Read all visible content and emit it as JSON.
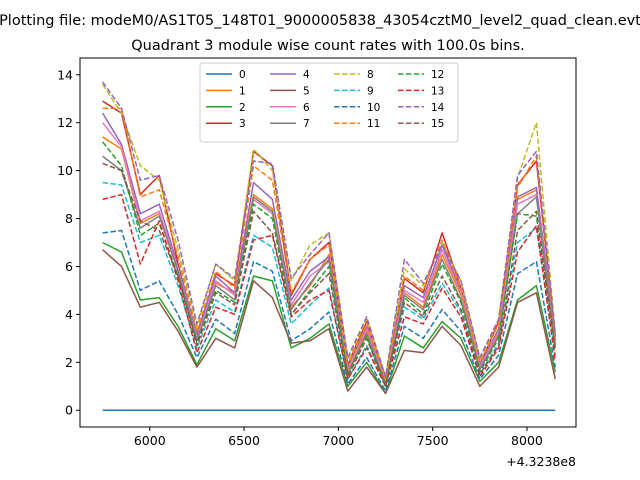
{
  "chart_data": {
    "type": "line",
    "suptitle": "Plotting file: modeM0/AS1T05_148T01_9000005838_43054cztM0_level2_quad_clean.evt",
    "title": "Quadrant 3 module wise count rates with 100.0s bins.",
    "xlabel": "",
    "ylabel": "",
    "x_offset_label": "+4.3238e8",
    "xlim": [
      5630,
      8260
    ],
    "ylim": [
      -0.7,
      14.7
    ],
    "xticks": [
      6000,
      6500,
      7000,
      7500,
      8000
    ],
    "xtick_labels": [
      "6000",
      "6500",
      "7000",
      "7500",
      "8000"
    ],
    "yticks": [
      0,
      2,
      4,
      6,
      8,
      10,
      12,
      14
    ],
    "ytick_labels": [
      "0",
      "2",
      "4",
      "6",
      "8",
      "10",
      "12",
      "14"
    ],
    "legend_position": "upper-center",
    "x": [
      5750,
      5850,
      5950,
      6050,
      6150,
      6250,
      6350,
      6450,
      6550,
      6650,
      6750,
      6850,
      6950,
      7050,
      7150,
      7250,
      7350,
      7450,
      7550,
      7650,
      7750,
      7850,
      7950,
      8050,
      8150
    ],
    "series": [
      {
        "name": "0",
        "color": "#1f77b4",
        "dash": "solid",
        "values": [
          0,
          0,
          0,
          0,
          0,
          0,
          0,
          0,
          0,
          0,
          0,
          0,
          0,
          0,
          0,
          0,
          0,
          0,
          0,
          0,
          0,
          0,
          0,
          0,
          0
        ]
      },
      {
        "name": "1",
        "color": "#ff7f0e",
        "dash": "solid",
        "values": [
          11.4,
          10.9,
          7.8,
          8.2,
          6.0,
          3.0,
          5.3,
          4.9,
          9.0,
          8.4,
          4.3,
          5.2,
          6.5,
          1.6,
          3.3,
          1.1,
          4.9,
          4.3,
          6.5,
          4.8,
          1.7,
          3.2,
          8.8,
          9.2,
          2.8
        ]
      },
      {
        "name": "2",
        "color": "#2ca02c",
        "dash": "solid",
        "values": [
          7.0,
          6.6,
          4.6,
          4.7,
          3.5,
          1.9,
          3.4,
          2.9,
          5.6,
          5.4,
          2.6,
          3.0,
          3.6,
          1.0,
          2.0,
          0.7,
          3.1,
          2.6,
          3.7,
          3.0,
          1.2,
          2.0,
          4.6,
          5.2,
          1.6
        ]
      },
      {
        "name": "3",
        "color": "#d62728",
        "dash": "solid",
        "values": [
          12.9,
          12.4,
          9.0,
          9.8,
          6.1,
          3.1,
          5.7,
          5.2,
          10.8,
          10.2,
          4.8,
          6.3,
          7.0,
          1.9,
          3.7,
          1.3,
          5.5,
          4.9,
          7.4,
          5.1,
          1.9,
          3.7,
          9.4,
          10.4,
          3.1
        ]
      },
      {
        "name": "4",
        "color": "#9467bd",
        "dash": "solid",
        "values": [
          12.4,
          11.1,
          8.2,
          8.6,
          6.0,
          3.2,
          5.6,
          4.9,
          9.5,
          8.8,
          4.6,
          5.8,
          6.4,
          1.8,
          3.5,
          1.3,
          5.2,
          4.7,
          6.9,
          5.0,
          1.9,
          3.4,
          8.9,
          9.3,
          3.0
        ]
      },
      {
        "name": "5",
        "color": "#8c564b",
        "dash": "solid",
        "values": [
          6.7,
          6.0,
          4.3,
          4.5,
          3.3,
          1.8,
          3.0,
          2.6,
          5.4,
          4.7,
          2.8,
          2.9,
          3.4,
          0.8,
          1.8,
          0.7,
          2.5,
          2.4,
          3.5,
          2.7,
          1.0,
          1.8,
          4.5,
          4.9,
          1.3
        ]
      },
      {
        "name": "6",
        "color": "#e377c2",
        "dash": "solid",
        "values": [
          12.0,
          11.0,
          7.9,
          8.3,
          5.9,
          3.0,
          5.4,
          4.8,
          8.8,
          8.2,
          4.4,
          5.6,
          6.2,
          1.7,
          3.4,
          1.2,
          5.0,
          4.5,
          6.7,
          4.9,
          1.8,
          3.3,
          8.6,
          9.0,
          2.9
        ]
      },
      {
        "name": "7",
        "color": "#7f7f7f",
        "dash": "solid",
        "values": [
          10.6,
          10.0,
          7.6,
          8.1,
          5.8,
          2.9,
          5.2,
          4.6,
          8.9,
          8.3,
          4.2,
          5.3,
          6.3,
          1.5,
          3.2,
          1.1,
          4.8,
          4.2,
          6.3,
          4.6,
          1.7,
          3.1,
          8.2,
          8.9,
          2.7
        ]
      },
      {
        "name": "8",
        "color": "#bcbd22",
        "dash": "dashed",
        "values": [
          13.6,
          12.4,
          10.2,
          9.6,
          6.7,
          3.5,
          6.1,
          5.4,
          10.9,
          10.0,
          5.4,
          6.9,
          7.4,
          2.1,
          3.8,
          1.4,
          5.9,
          5.2,
          7.0,
          5.4,
          2.1,
          3.8,
          9.7,
          12.0,
          3.2
        ]
      },
      {
        "name": "9",
        "color": "#17becf",
        "dash": "dashed",
        "values": [
          9.5,
          9.4,
          7.0,
          7.3,
          5.2,
          2.6,
          4.6,
          4.1,
          7.3,
          6.8,
          3.6,
          4.4,
          5.1,
          1.3,
          2.7,
          1.0,
          4.3,
          3.8,
          5.3,
          4.1,
          1.5,
          2.8,
          7.0,
          7.6,
          2.3
        ]
      },
      {
        "name": "10",
        "color": "#1f77b4",
        "dash": "dashed",
        "values": [
          7.4,
          7.5,
          5.0,
          5.4,
          4.0,
          2.2,
          3.8,
          3.2,
          6.2,
          5.8,
          2.9,
          3.4,
          4.1,
          1.1,
          2.2,
          0.8,
          3.5,
          3.0,
          4.2,
          3.3,
          1.3,
          2.3,
          5.7,
          6.2,
          1.8
        ]
      },
      {
        "name": "11",
        "color": "#ff7f0e",
        "dash": "dashed",
        "values": [
          12.6,
          12.6,
          8.9,
          9.2,
          6.4,
          3.3,
          5.8,
          5.1,
          10.2,
          9.6,
          4.9,
          6.3,
          6.9,
          1.9,
          3.6,
          1.3,
          5.6,
          5.0,
          7.1,
          5.1,
          2.0,
          3.6,
          9.3,
          10.6,
          3.0
        ]
      },
      {
        "name": "12",
        "color": "#2ca02c",
        "dash": "dashed",
        "values": [
          11.2,
          10.2,
          7.3,
          7.8,
          5.6,
          2.8,
          5.0,
          4.5,
          8.6,
          8.0,
          4.0,
          5.0,
          6.0,
          1.5,
          3.1,
          1.0,
          4.7,
          4.0,
          6.1,
          4.5,
          1.6,
          3.0,
          8.2,
          8.1,
          2.6
        ]
      },
      {
        "name": "13",
        "color": "#d62728",
        "dash": "dashed",
        "values": [
          8.8,
          9.0,
          6.1,
          7.9,
          5.4,
          2.4,
          4.3,
          4.0,
          7.1,
          7.3,
          3.9,
          4.6,
          5.0,
          1.3,
          2.6,
          1.0,
          3.9,
          3.6,
          5.1,
          3.9,
          1.4,
          2.6,
          6.6,
          7.7,
          2.1
        ]
      },
      {
        "name": "14",
        "color": "#9467bd",
        "dash": "dashed",
        "values": [
          13.7,
          12.6,
          9.6,
          9.8,
          7.1,
          3.6,
          6.1,
          5.5,
          10.4,
          10.3,
          5.5,
          6.5,
          7.4,
          2.2,
          3.9,
          1.4,
          6.3,
          5.3,
          6.9,
          5.4,
          2.2,
          3.8,
          9.8,
          10.8,
          3.2
        ]
      },
      {
        "name": "15",
        "color": "#8c564b",
        "dash": "dashed",
        "values": [
          10.3,
          10.0,
          7.9,
          7.5,
          5.6,
          2.7,
          4.9,
          4.4,
          8.3,
          7.4,
          4.0,
          4.9,
          5.7,
          1.4,
          3.0,
          1.0,
          4.5,
          3.9,
          5.6,
          4.2,
          1.5,
          2.7,
          7.5,
          8.3,
          2.5
        ]
      }
    ]
  }
}
